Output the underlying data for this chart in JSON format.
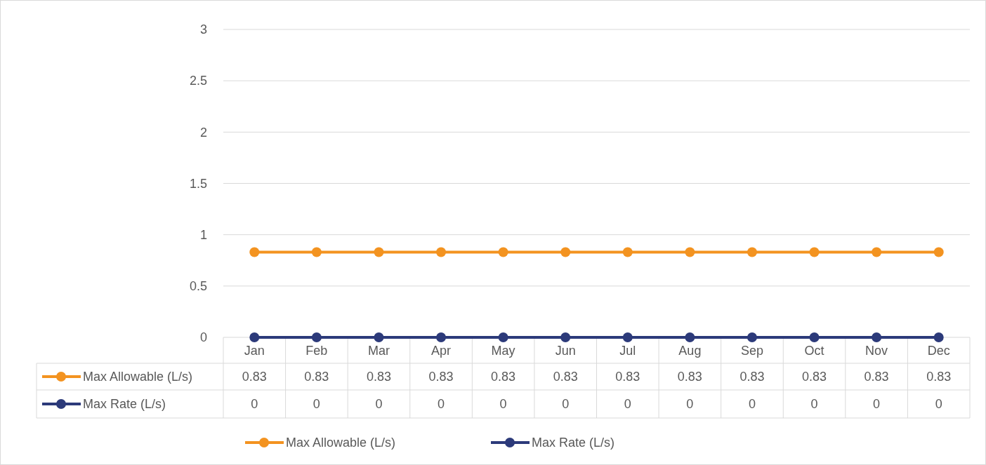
{
  "chart_data": {
    "type": "line",
    "categories": [
      "Jan",
      "Feb",
      "Mar",
      "Apr",
      "May",
      "Jun",
      "Jul",
      "Aug",
      "Sep",
      "Oct",
      "Nov",
      "Dec"
    ],
    "series": [
      {
        "name": "Max Allowable (L/s)",
        "color": "#f39320",
        "values": [
          0.83,
          0.83,
          0.83,
          0.83,
          0.83,
          0.83,
          0.83,
          0.83,
          0.83,
          0.83,
          0.83,
          0.83
        ]
      },
      {
        "name": "Max Rate (L/s)",
        "color": "#2c3a7a",
        "values": [
          0,
          0,
          0,
          0,
          0,
          0,
          0,
          0,
          0,
          0,
          0,
          0
        ]
      }
    ],
    "ylim": [
      0,
      3
    ],
    "yticks": [
      0,
      0.5,
      1,
      1.5,
      2,
      2.5,
      3
    ],
    "grid": "y",
    "legend": "bottom",
    "marker": "circle",
    "line_style": "solid",
    "data_labels": true
  }
}
